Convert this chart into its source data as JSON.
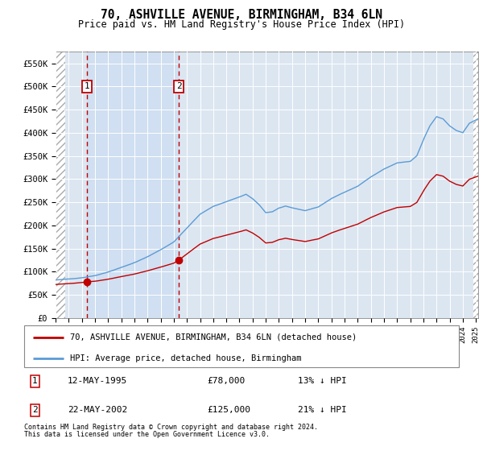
{
  "title1": "70, ASHVILLE AVENUE, BIRMINGHAM, B34 6LN",
  "title2": "Price paid vs. HM Land Registry's House Price Index (HPI)",
  "ylim": [
    0,
    575000
  ],
  "yticks": [
    0,
    50000,
    100000,
    150000,
    200000,
    250000,
    300000,
    350000,
    400000,
    450000,
    500000,
    550000
  ],
  "ytick_labels": [
    "£0",
    "£50K",
    "£100K",
    "£150K",
    "£200K",
    "£250K",
    "£300K",
    "£350K",
    "£400K",
    "£450K",
    "£500K",
    "£550K"
  ],
  "sale1_year": 1995.37,
  "sale1_price": 78000,
  "sale1_label": "1",
  "sale2_year": 2002.38,
  "sale2_price": 125000,
  "sale2_label": "2",
  "hpi_color": "#5b9bd5",
  "property_color": "#c00000",
  "bg_color": "#dce6f1",
  "legend_property": "70, ASHVILLE AVENUE, BIRMINGHAM, B34 6LN (detached house)",
  "legend_hpi": "HPI: Average price, detached house, Birmingham",
  "footnote1": "Contains HM Land Registry data © Crown copyright and database right 2024.",
  "footnote2": "This data is licensed under the Open Government Licence v3.0.",
  "table_row1": [
    "1",
    "12-MAY-1995",
    "£78,000",
    "13% ↓ HPI"
  ],
  "table_row2": [
    "2",
    "22-MAY-2002",
    "£125,000",
    "21% ↓ HPI"
  ],
  "xmin": 1993.0,
  "xmax": 2025.17
}
